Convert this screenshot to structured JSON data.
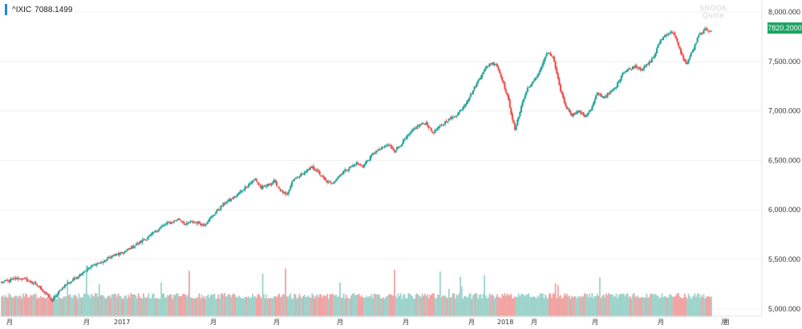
{
  "legend": {
    "symbol": "^IXIC",
    "value": "7088.1499"
  },
  "current_price_label": "7820.2000",
  "watermark": {
    "line1": "SNOOK",
    "line2": "Quote"
  },
  "colors": {
    "up": "#26a69a",
    "down": "#ef5350",
    "up_volume": "#9ed3cb",
    "down_volume": "#f2a3a3",
    "price_tag": "#1fa463",
    "legend_bar": "#1e88e5",
    "grid": "#f0f0f0",
    "text": "#333333"
  },
  "chart_data": {
    "type": "candlestick",
    "title": "",
    "xlabel": "",
    "ylabel": "",
    "ylim": [
      4950,
      8000
    ],
    "y_ticks": [
      "8,000.000",
      "7,500.000",
      "7,000.000",
      "6,500.000",
      "6,000.000",
      "5,500.000",
      "5,000.000"
    ],
    "y_tick_values": [
      8000,
      7500,
      7000,
      6500,
      6000,
      5500,
      5000
    ],
    "x_tick_labels": [
      "月",
      "月",
      "2017",
      "月",
      "月",
      "月",
      "月",
      "月",
      "2018",
      "月",
      "月",
      "月",
      "月",
      "月"
    ],
    "series": [
      {
        "name": "^IXIC",
        "kind": "candlestick",
        "close_path_weekly": [
          5270,
          5280,
          5300,
          5310,
          5290,
          5260,
          5220,
          5150,
          5080,
          5170,
          5240,
          5280,
          5330,
          5380,
          5420,
          5460,
          5470,
          5520,
          5550,
          5560,
          5600,
          5640,
          5680,
          5720,
          5770,
          5820,
          5860,
          5880,
          5910,
          5850,
          5880,
          5870,
          5850,
          5920,
          5990,
          6060,
          6100,
          6140,
          6200,
          6260,
          6310,
          6220,
          6250,
          6290,
          6200,
          6140,
          6300,
          6340,
          6390,
          6430,
          6380,
          6300,
          6260,
          6330,
          6390,
          6430,
          6470,
          6440,
          6520,
          6590,
          6620,
          6660,
          6600,
          6660,
          6740,
          6810,
          6860,
          6880,
          6780,
          6830,
          6890,
          6930,
          6970,
          7060,
          7160,
          7280,
          7400,
          7480,
          7480,
          7320,
          7100,
          6800,
          7050,
          7230,
          7300,
          7420,
          7580,
          7550,
          7250,
          7050,
          6960,
          7000,
          6950,
          7010,
          7180,
          7140,
          7180,
          7250,
          7390,
          7420,
          7460,
          7420,
          7470,
          7560,
          7720,
          7780,
          7800,
          7620,
          7470,
          7600,
          7760,
          7820,
          7810
        ],
        "note": "daily OHLC candles approximating the drawn index path"
      }
    ],
    "volume": {
      "baseline": 5000,
      "typical_top": 5140
    }
  }
}
